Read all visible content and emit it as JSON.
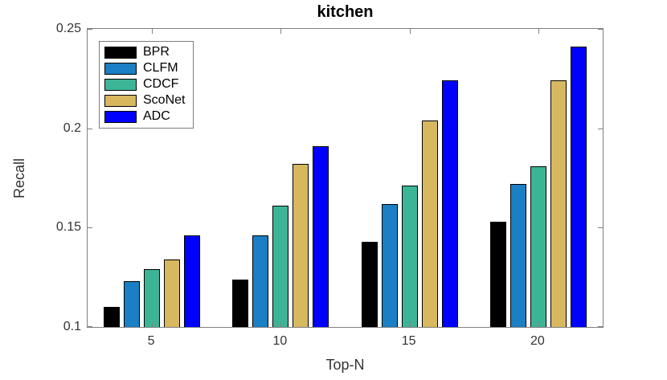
{
  "figure": {
    "title": "kitchen",
    "xlabel": "Top-N",
    "ylabel": "Recall"
  },
  "chart_data": {
    "type": "bar",
    "title": "kitchen",
    "xlabel": "Top-N",
    "ylabel": "Recall",
    "categories": [
      5,
      10,
      15,
      20
    ],
    "series": [
      {
        "name": "BPR",
        "color": "#000000",
        "values": [
          0.11,
          0.124,
          0.143,
          0.153
        ]
      },
      {
        "name": "CLFM",
        "color": "#1a7fc4",
        "values": [
          0.123,
          0.146,
          0.162,
          0.172
        ]
      },
      {
        "name": "CDCF",
        "color": "#3cb596",
        "values": [
          0.129,
          0.161,
          0.171,
          0.181
        ]
      },
      {
        "name": "ScoNet",
        "color": "#d7b85e",
        "values": [
          0.134,
          0.182,
          0.204,
          0.224
        ]
      },
      {
        "name": "ADC",
        "color": "#0000ff",
        "values": [
          0.146,
          0.191,
          0.224,
          0.241
        ]
      }
    ],
    "ylim": [
      0.1,
      0.25
    ],
    "xlim": [
      2.5,
      22.5
    ],
    "yticks": {
      "values": [
        0.1,
        0.15,
        0.2,
        0.25
      ],
      "labels": [
        "0.1",
        "0.15",
        "0.2",
        "0.25"
      ]
    },
    "xticks": {
      "values": [
        5,
        10,
        15,
        20
      ],
      "labels": [
        "5",
        "10",
        "15",
        "20"
      ]
    },
    "legend_position": "top-left",
    "grid": false,
    "styles": {
      "axis_color": "#808080",
      "tick_label_color": "#333333",
      "bar_edge_color": "#000000",
      "legend_border_color": "#7d7d7d",
      "background": "#ffffff"
    }
  }
}
